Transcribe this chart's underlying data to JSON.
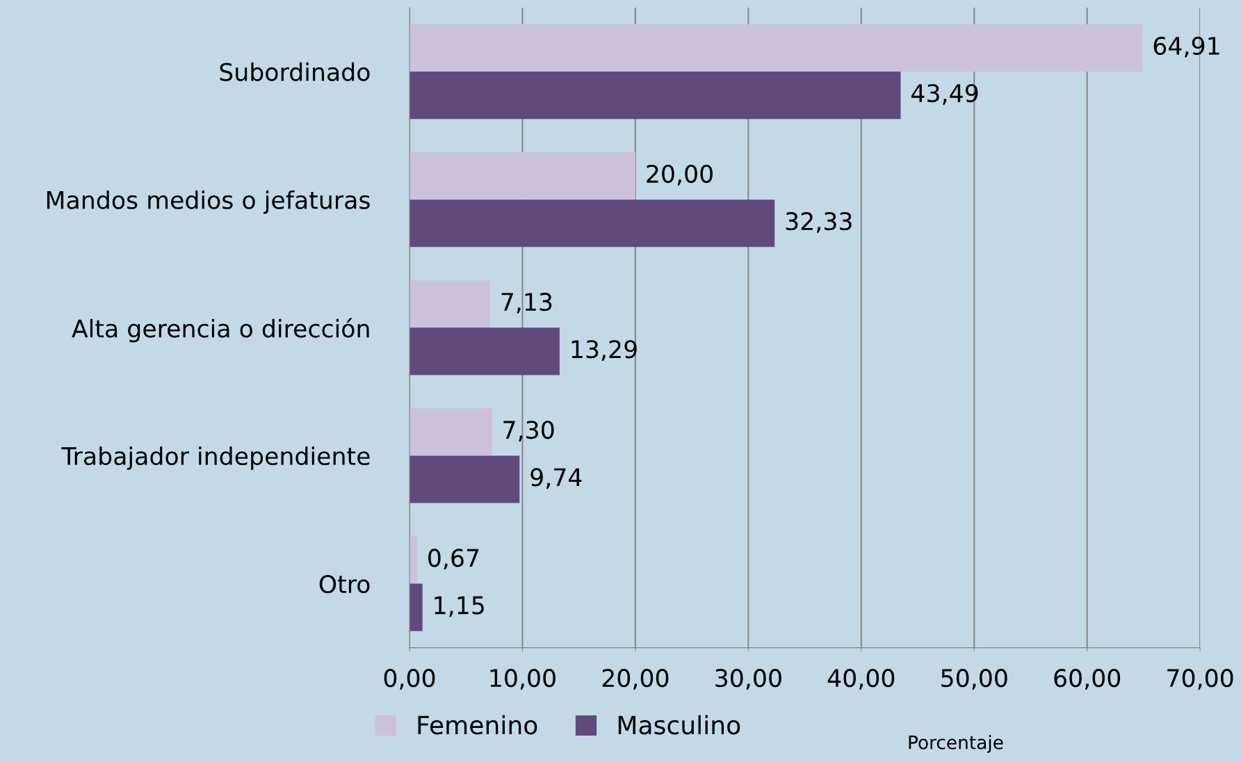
{
  "chart_data": {
    "type": "bar",
    "orientation": "horizontal",
    "xlabel": "Porcentaje",
    "categories": [
      "Subordinado",
      "Mandos medios o jefaturas",
      "Alta gerencia o dirección",
      "Trabajador independiente",
      "Otro"
    ],
    "series": [
      {
        "name": "Femenino",
        "color": "#ccc1da",
        "values": [
          64.91,
          20.0,
          7.13,
          7.3,
          0.67
        ],
        "value_labels": [
          "64,91",
          "20,00",
          "7,13",
          "7,30",
          "0,67"
        ]
      },
      {
        "name": "Masculino",
        "color": "#604a7b",
        "values": [
          43.49,
          32.33,
          13.29,
          9.74,
          1.15
        ],
        "value_labels": [
          "43,49",
          "32,33",
          "13,29",
          "9,74",
          "1,15"
        ]
      }
    ],
    "xlim": [
      0,
      70
    ],
    "xticks": [
      {
        "value": 0,
        "label": "0,00"
      },
      {
        "value": 10,
        "label": "10,00"
      },
      {
        "value": 20,
        "label": "20,00"
      },
      {
        "value": 30,
        "label": "30,00"
      },
      {
        "value": 40,
        "label": "40,00"
      },
      {
        "value": 50,
        "label": "50,00"
      },
      {
        "value": 60,
        "label": "60,00"
      },
      {
        "value": 70,
        "label": "70,00"
      }
    ],
    "grid": "x",
    "legend": "bottom"
  }
}
